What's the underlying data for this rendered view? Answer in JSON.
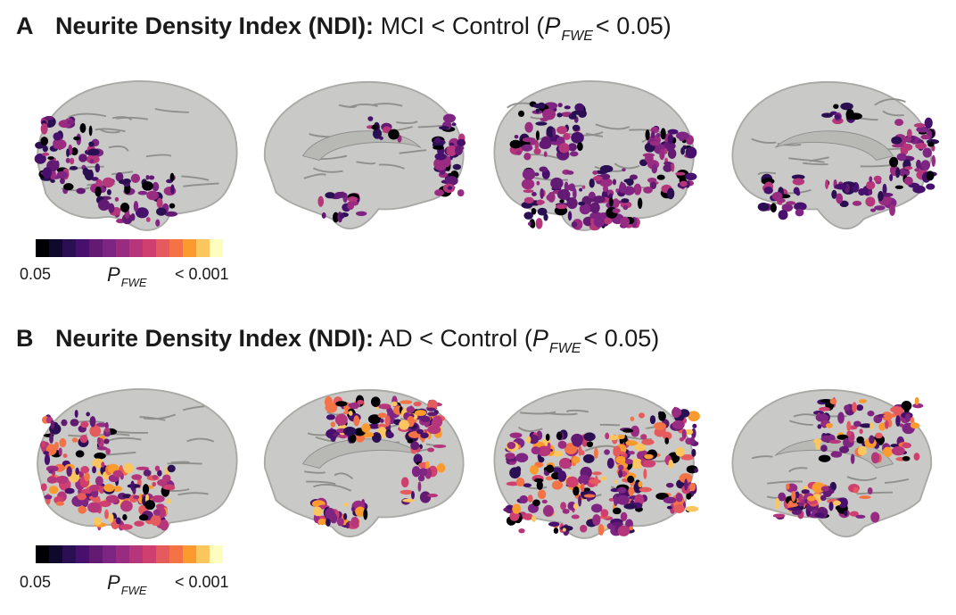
{
  "panels": [
    {
      "letter": "A",
      "metric": "Neurite Density Index (NDI):",
      "comparison": " MCI < Control (",
      "p": "P",
      "p_sub": "FWE",
      "threshold": "< 0.05)",
      "views": [
        "left-lateral",
        "left-medial",
        "right-lateral",
        "right-medial"
      ]
    },
    {
      "letter": "B",
      "metric": "Neurite Density Index (NDI):",
      "comparison": " AD < Control (",
      "p": "P",
      "p_sub": "FWE",
      "threshold": "< 0.05)",
      "views": [
        "left-lateral",
        "left-medial",
        "right-lateral",
        "right-medial"
      ]
    }
  ],
  "colorbar": {
    "min_label": "0.05",
    "max_label": "< 0.001",
    "label": "P",
    "label_sub": "FWE",
    "colors": [
      "#000004",
      "#0f0a2d",
      "#2a0f52",
      "#47106d",
      "#621a73",
      "#7e2482",
      "#992c81",
      "#b5367a",
      "#cf4070",
      "#e55a5d",
      "#f37346",
      "#fb9b2f",
      "#fcc65e",
      "#fcfdbf"
    ]
  },
  "colors": {
    "cortex": "#c9c9c7",
    "cortex_shade": "#a9a9a6",
    "sulcus": "#8f8f8c"
  }
}
